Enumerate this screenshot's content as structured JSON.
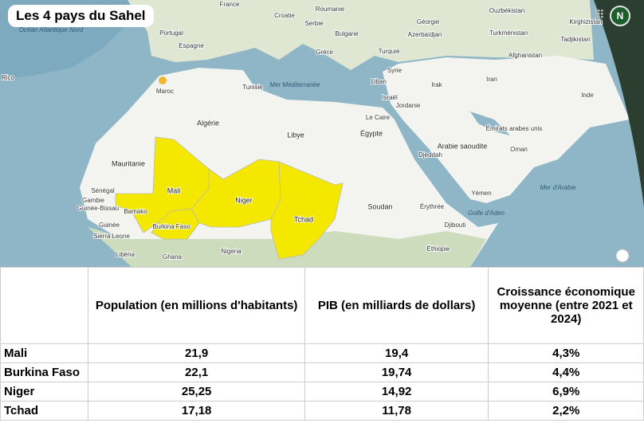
{
  "map": {
    "title": "Les 4 pays du Sahel",
    "avatar": "N",
    "labels": [
      "France",
      "Croatie",
      "Roumanie",
      "Serbie",
      "Bulgarie",
      "Géorgie",
      "Azerbaïdjan",
      "Turkménistan",
      "Ouzbékistan",
      "Kirghizistan",
      "Tadjikistan",
      "Portugal",
      "Espagne",
      "Grèce",
      "Turquie",
      "Afghanistan",
      "Océan Atlantique Nord",
      "Rico",
      "Tunisie",
      "Maroc",
      "Mer Méditerranée",
      "Syrie",
      "Liban",
      "Irak",
      "Iran",
      "Israël",
      "Jordanie",
      "Inde",
      "Algérie",
      "Libye",
      "Égypte",
      "Le Caire",
      "Arabie saoudite",
      "Émirats arabes unis",
      "Oman",
      "Djeddah",
      "Mauritanie",
      "Mali",
      "Niger",
      "Tchad",
      "Soudan",
      "Érythrée",
      "Yémen",
      "Mer d'Arabie",
      "Golfe d'Aden",
      "Djibouti",
      "Sénégal",
      "Gambie",
      "Guinée-Bissau",
      "Bamako",
      "Burkina Faso",
      "Guinée",
      "Sierra Leone",
      "Libéria",
      "Ghana",
      "Nigeria",
      "Éthiopie"
    ]
  },
  "table": {
    "header": [
      "Population (en millions d'habitants)",
      "PIB (en milliards de dollars)",
      "Croissance économique moyenne (entre 2021 et 2024)"
    ],
    "rows": [
      [
        "Mali",
        "21,9",
        "19,4",
        "4,3%"
      ],
      [
        "Burkina Faso",
        "22,1",
        "19,74",
        "4,4%"
      ],
      [
        "Niger",
        "25,25",
        "14,92",
        "6,9%"
      ],
      [
        "Tchad",
        "17,18",
        "11,78",
        "2,2%"
      ]
    ]
  }
}
